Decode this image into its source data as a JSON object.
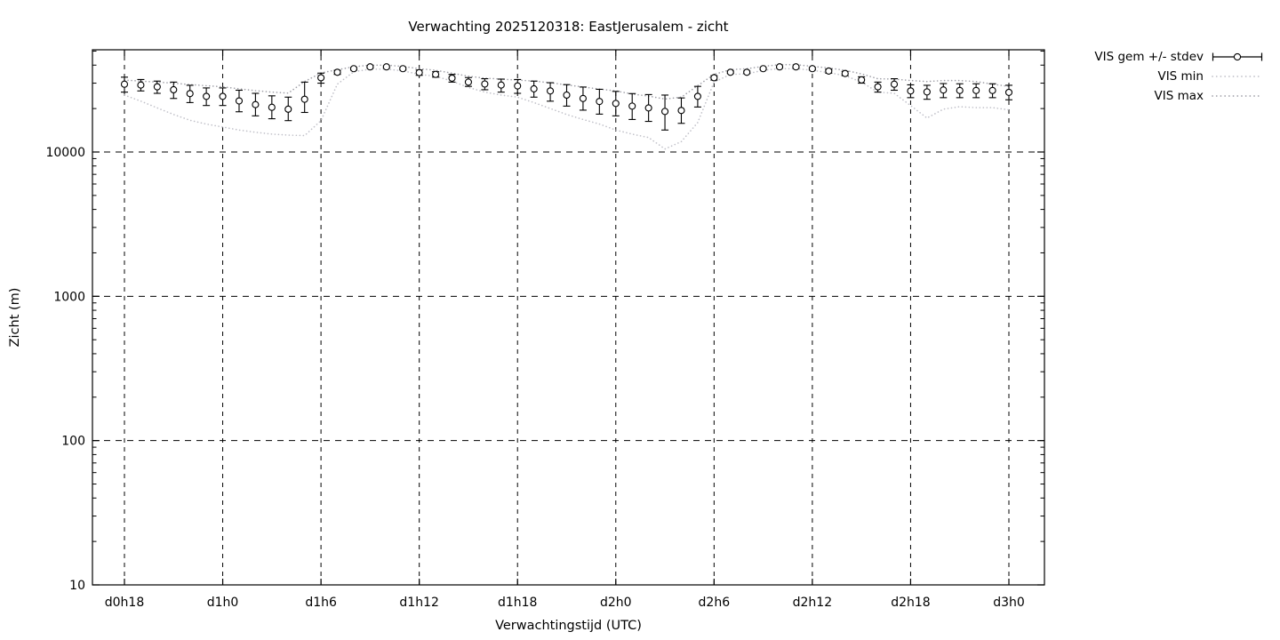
{
  "title": "Verwachting 2025120318: EastJerusalem - zicht",
  "axes": {
    "x_label": "Verwachtingstijd (UTC)",
    "y_label": "Zicht (m)"
  },
  "legend": [
    {
      "label": "VIS gem +/- stdev",
      "sample": "errorbar",
      "color": "#000000"
    },
    {
      "label": "VIS min",
      "sample": "dotted",
      "color": "#c0c0c8"
    },
    {
      "label": "VIS max",
      "sample": "dotted",
      "color": "#a0a0a8"
    }
  ],
  "chart_data": {
    "type": "line",
    "title": "Verwachting 2025120318: EastJerusalem - zicht",
    "xlabel": "Verwachtingstijd (UTC)",
    "ylabel": "Zicht (m)",
    "y_scale": "log10",
    "ylim": [
      10,
      51000
    ],
    "y_major_ticks": [
      10,
      100,
      1000,
      10000
    ],
    "grid": "dashed",
    "legend_position": "outside-top-right",
    "x_hours_start": 18,
    "x_hours_end": 72,
    "x_ticks": [
      {
        "hour": 18,
        "label": "d0h18"
      },
      {
        "hour": 24,
        "label": "d1h0"
      },
      {
        "hour": 30,
        "label": "d1h6"
      },
      {
        "hour": 36,
        "label": "d1h12"
      },
      {
        "hour": 42,
        "label": "d1h18"
      },
      {
        "hour": 48,
        "label": "d2h0"
      },
      {
        "hour": 54,
        "label": "d2h6"
      },
      {
        "hour": 60,
        "label": "d2h12"
      },
      {
        "hour": 66,
        "label": "d2h18"
      },
      {
        "hour": 72,
        "label": "d3h0"
      }
    ],
    "series": [
      {
        "name": "VIS gem +/- stdev",
        "style": "errorbar-points",
        "color": "#000000",
        "mean": [
          29500,
          29100,
          28300,
          27000,
          25400,
          24300,
          24300,
          22600,
          21300,
          20400,
          19800,
          23200,
          32700,
          35700,
          37800,
          38900,
          38900,
          37800,
          35500,
          34500,
          32500,
          30500,
          29600,
          29100,
          28700,
          27400,
          26500,
          24800,
          23500,
          22400,
          21700,
          20800,
          20200,
          19100,
          19400,
          24300,
          32700,
          35700,
          35700,
          37800,
          38900,
          38900,
          37800,
          36400,
          35000,
          31600,
          28300,
          29500,
          26500,
          26100,
          26900,
          26700,
          26700,
          26700,
          25900
        ],
        "lo": [
          26000,
          26500,
          25500,
          23500,
          22000,
          21000,
          21000,
          19000,
          17800,
          17000,
          16500,
          18800,
          30000,
          34500,
          37000,
          38200,
          38200,
          37000,
          34000,
          33000,
          30500,
          28500,
          27000,
          26000,
          25500,
          24000,
          22500,
          20800,
          19500,
          18300,
          17800,
          16800,
          16300,
          14200,
          15800,
          20500,
          31500,
          35000,
          35000,
          37200,
          38300,
          38300,
          37000,
          35200,
          33800,
          30000,
          26000,
          26800,
          23800,
          23200,
          23800,
          23800,
          23800,
          23800,
          23000
        ],
        "hi": [
          33000,
          31800,
          31000,
          30500,
          29000,
          27800,
          27800,
          26800,
          25500,
          24500,
          24000,
          30500,
          35200,
          36800,
          38500,
          39500,
          39500,
          38500,
          37000,
          36000,
          34500,
          32800,
          32200,
          32000,
          31800,
          31000,
          30200,
          29300,
          28200,
          27200,
          26300,
          25400,
          25000,
          24800,
          23700,
          28500,
          33800,
          36400,
          36400,
          38400,
          39400,
          39400,
          38500,
          37500,
          36200,
          33200,
          30500,
          32200,
          29200,
          29000,
          29800,
          29700,
          29700,
          29700,
          29000
        ]
      },
      {
        "name": "VIS min",
        "style": "dotted",
        "color": "#c0c0c8",
        "values": [
          24800,
          22500,
          20200,
          18200,
          16600,
          15600,
          14900,
          14200,
          13700,
          13300,
          13100,
          13000,
          16500,
          29500,
          36000,
          37500,
          37500,
          36500,
          34500,
          33500,
          31000,
          28000,
          26000,
          24800,
          24000,
          22000,
          20000,
          18200,
          16800,
          15600,
          14200,
          13300,
          12600,
          10500,
          11800,
          16000,
          30500,
          34500,
          34800,
          36800,
          37800,
          37800,
          36800,
          35500,
          33800,
          30500,
          26000,
          25500,
          21000,
          17200,
          19800,
          20600,
          20300,
          20300,
          19600
        ]
      },
      {
        "name": "VIS max",
        "style": "dotted",
        "color": "#a0a0a8",
        "values": [
          31500,
          31000,
          30500,
          30000,
          29300,
          28800,
          28300,
          27400,
          26600,
          26000,
          25600,
          30800,
          35300,
          37200,
          39000,
          40000,
          40000,
          39200,
          37800,
          36800,
          35200,
          33500,
          32500,
          32000,
          31500,
          31000,
          30200,
          29200,
          28200,
          27300,
          26500,
          25200,
          24400,
          23300,
          24000,
          28800,
          34500,
          37200,
          37800,
          39200,
          40300,
          40300,
          39200,
          38200,
          36800,
          34800,
          32200,
          32000,
          31300,
          30800,
          31300,
          31300,
          30800,
          29500,
          28500
        ]
      }
    ]
  },
  "layout_colors": {
    "background": "#ffffff",
    "axis": "#000000",
    "grid": "#000000"
  }
}
